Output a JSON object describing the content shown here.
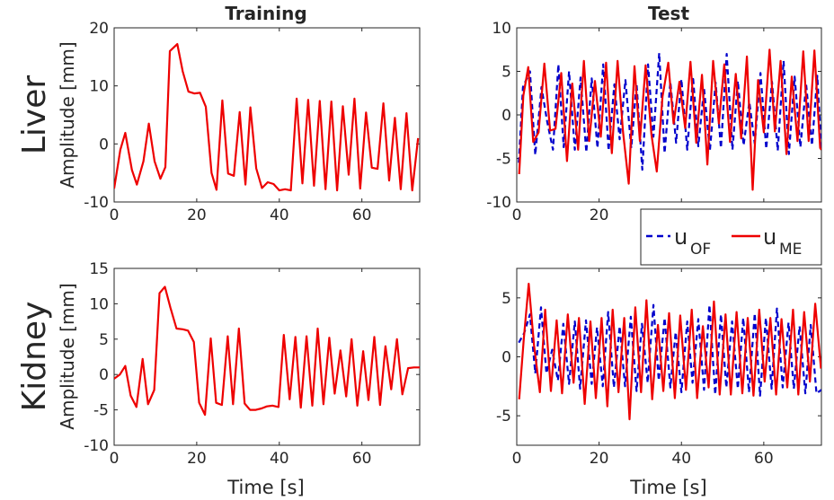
{
  "colors": {
    "ME": "#ee0000",
    "OF": "#0000cc",
    "axes": "#262626"
  },
  "legend": {
    "u": "u",
    "OF": "OF",
    "ME": "ME"
  },
  "rows": [
    "Liver",
    "Kidney"
  ],
  "chart_data": [
    {
      "type": "line",
      "title": "Training",
      "row": "Liver",
      "xlabel": "",
      "ylabel": "Amplitude [mm]",
      "xlim": [
        0,
        74
      ],
      "ylim": [
        -10,
        20
      ],
      "xticks": [
        0,
        20,
        40,
        60
      ],
      "yticks": [
        -10,
        0,
        10,
        20
      ],
      "ytick_labels": [
        "-10",
        "0",
        "10",
        "20"
      ],
      "series": [
        {
          "name": "u_ME",
          "color": "#ee0000",
          "dash": "solid",
          "x": [
            0,
            1.5,
            2.7,
            4.3,
            5.5,
            7.1,
            8.4,
            9.8,
            11.2,
            12.4,
            13.5,
            15.3,
            16.6,
            18.0,
            19.4,
            20.8,
            22.2,
            23.6,
            24.8,
            26.2,
            27.6,
            29.0,
            30.4,
            31.8,
            33.0,
            34.4,
            35.8,
            37.2,
            38.6,
            40.0,
            41.4,
            42.8,
            44.2,
            45.6,
            47.0,
            48.4,
            49.8,
            51.2,
            52.6,
            54.0,
            55.4,
            56.8,
            58.2,
            59.6,
            61.0,
            62.4,
            63.8,
            65.2,
            66.6,
            68.0,
            69.4,
            70.8,
            72.2,
            73.6
          ],
          "values": [
            -7.7,
            -1,
            1.9,
            -4.5,
            -7,
            -3,
            3.5,
            -3,
            -6,
            -4,
            16.0,
            17.2,
            12.5,
            9.0,
            8.7,
            8.8,
            6.4,
            -5.0,
            -7.9,
            7.5,
            -5.1,
            -5.5,
            5.5,
            -7.0,
            6.3,
            -4.2,
            -7.6,
            -6.6,
            -6.9,
            -8.0,
            -7.8,
            -8.0,
            7.8,
            -6.8,
            7.6,
            -7.2,
            7.4,
            -7.8,
            7.3,
            -8.0,
            6.5,
            -5.3,
            7.8,
            -7.7,
            5.4,
            -4.1,
            -4.3,
            7.0,
            -6.3,
            4.5,
            -7.8,
            5.3,
            -8.0,
            1.0
          ]
        }
      ]
    },
    {
      "type": "line",
      "title": "Test",
      "row": "Liver",
      "xlabel": "",
      "ylabel": "",
      "xlim": [
        0,
        74
      ],
      "ylim": [
        -10,
        10
      ],
      "xticks": [
        0,
        20,
        40,
        60
      ],
      "yticks": [
        -10,
        -5,
        0,
        5,
        10
      ],
      "ytick_labels": [
        "-10",
        "-5",
        "0",
        "5",
        "10"
      ],
      "series": [
        {
          "name": "u_OF",
          "color": "#0000cc",
          "dash": "dashed",
          "x": [
            0.5,
            1.5,
            3.2,
            4.5,
            6.0,
            7.4,
            8.8,
            10.1,
            11.4,
            12.7,
            14.1,
            15.5,
            16.9,
            18.2,
            19.6,
            21.0,
            22.3,
            23.7,
            25.0,
            26.4,
            27.8,
            29.1,
            30.5,
            31.9,
            33.2,
            34.6,
            35.9,
            37.3,
            38.7,
            40.0,
            41.4,
            42.8,
            44.1,
            45.5,
            46.9,
            48.3,
            49.6,
            51.0,
            52.4,
            53.7,
            55.1,
            56.5,
            57.8,
            59.2,
            60.6,
            62.0,
            63.4,
            64.8,
            66.1,
            67.5,
            68.9,
            70.3,
            71.7,
            73.0,
            74.0
          ],
          "values": [
            -5.5,
            3.2,
            5.0,
            -4.6,
            3.2,
            -0.8,
            -4.0,
            5.8,
            -3.7,
            5.0,
            -4.0,
            4.3,
            -4.3,
            4.2,
            -3.8,
            5.8,
            -4.1,
            3.5,
            -2.8,
            4.0,
            -3.8,
            3.6,
            -6.3,
            5.8,
            -2.5,
            7.1,
            -4.4,
            3.8,
            -3.2,
            4.1,
            -4.0,
            4.4,
            -3.6,
            3.0,
            -4.1,
            3.7,
            -3.8,
            7.0,
            -4.0,
            3.9,
            -3.5,
            1.5,
            -3.3,
            4.8,
            -3.9,
            3.8,
            -4.1,
            6.2,
            -4.5,
            4.4,
            -3.7,
            3.5,
            -3.5,
            4.5,
            -4.0
          ]
        },
        {
          "name": "u_ME",
          "color": "#ee0000",
          "dash": "solid",
          "x": [
            0.6,
            1.6,
            2.8,
            4.0,
            5.3,
            6.7,
            8.1,
            9.4,
            10.8,
            12.2,
            13.5,
            14.9,
            16.3,
            17.6,
            19.0,
            20.4,
            21.7,
            23.1,
            24.5,
            25.8,
            27.2,
            28.6,
            29.9,
            31.3,
            32.7,
            34.0,
            35.4,
            36.8,
            38.1,
            39.5,
            40.9,
            42.2,
            43.6,
            45.0,
            46.3,
            47.7,
            49.1,
            50.4,
            51.8,
            53.2,
            54.5,
            55.9,
            57.3,
            58.6,
            60.0,
            61.4,
            62.7,
            64.1,
            65.5,
            66.8,
            68.2,
            69.6,
            70.9,
            72.3,
            73.7,
            74.0
          ],
          "values": [
            -6.8,
            2.2,
            5.5,
            -3.1,
            -2.0,
            5.9,
            -1.8,
            -1.6,
            4.8,
            -5.3,
            3.6,
            -4.0,
            6.2,
            -3.0,
            3.9,
            -2.5,
            6.0,
            -4.4,
            6.2,
            -1.9,
            -7.9,
            5.6,
            -3.0,
            5.7,
            -2.2,
            -6.5,
            2.1,
            6.0,
            -1.0,
            3.8,
            -1.5,
            6.1,
            -3.2,
            4.6,
            -5.7,
            6.2,
            -1.0,
            5.8,
            -3.1,
            4.7,
            -2.7,
            6.7,
            -8.6,
            4.0,
            -2.0,
            7.5,
            -1.9,
            6.2,
            -4.5,
            4.4,
            -3.0,
            7.3,
            -3.0,
            7.4,
            -3.8,
            -4.0
          ]
        }
      ]
    },
    {
      "type": "line",
      "title": "",
      "row": "Kidney",
      "xlabel": "Time [s]",
      "ylabel": "Amplitude [mm]",
      "xlim": [
        0,
        74
      ],
      "ylim": [
        -10,
        15
      ],
      "xticks": [
        0,
        20,
        40,
        60
      ],
      "yticks": [
        -10,
        -5,
        0,
        5,
        10,
        15
      ],
      "ytick_labels": [
        "-10",
        "-5",
        "0",
        "5",
        "10",
        "15"
      ],
      "series": [
        {
          "name": "u_ME",
          "color": "#ee0000",
          "dash": "solid",
          "x": [
            0,
            1.4,
            2.7,
            4.0,
            5.4,
            6.9,
            8.2,
            9.7,
            11.0,
            12.3,
            13.6,
            15.1,
            16.6,
            17.9,
            19.3,
            20.6,
            22.0,
            23.4,
            24.7,
            26.1,
            27.5,
            28.8,
            30.2,
            31.6,
            32.9,
            34.3,
            35.7,
            37.0,
            38.4,
            39.8,
            41.1,
            42.5,
            43.9,
            45.2,
            46.6,
            48.0,
            49.3,
            50.7,
            52.1,
            53.4,
            54.8,
            56.2,
            57.5,
            58.9,
            60.3,
            61.6,
            63.0,
            64.4,
            65.7,
            67.1,
            68.5,
            69.8,
            71.2,
            72.6,
            74.0
          ],
          "values": [
            -0.6,
            0.0,
            1.2,
            -3.0,
            -4.6,
            2.2,
            -4.2,
            -2.2,
            11.5,
            12.4,
            9.5,
            6.5,
            6.4,
            6.2,
            4.6,
            -4.0,
            -5.7,
            5.1,
            -4.0,
            -4.3,
            5.4,
            -4.2,
            6.5,
            -4.1,
            -5.0,
            -5.0,
            -4.8,
            -4.5,
            -4.4,
            -4.6,
            5.6,
            -3.5,
            5.3,
            -4.7,
            5.4,
            -4.4,
            6.5,
            -4.2,
            5.2,
            -2.7,
            3.4,
            -3.1,
            5.0,
            -4.4,
            3.3,
            -3.6,
            5.3,
            -4.3,
            4.0,
            -2.1,
            5.0,
            -2.8,
            0.9,
            1.0,
            1.0
          ]
        }
      ]
    },
    {
      "type": "line",
      "title": "",
      "row": "Kidney",
      "xlabel": "Time [s]",
      "ylabel": "",
      "xlim": [
        0,
        74
      ],
      "ylim": [
        -7.5,
        7.5
      ],
      "xticks": [
        0,
        20,
        40,
        60
      ],
      "yticks": [
        -5,
        0,
        5
      ],
      "ytick_labels": [
        "-5",
        "0",
        "5"
      ],
      "series": [
        {
          "name": "u_OF",
          "color": "#0000cc",
          "dash": "dashed",
          "x": [
            0.5,
            1.8,
            3.2,
            4.5,
            5.9,
            7.2,
            8.6,
            10.0,
            11.3,
            12.7,
            14.1,
            15.4,
            16.8,
            18.2,
            19.5,
            20.9,
            22.2,
            23.6,
            25.0,
            26.3,
            27.7,
            29.1,
            30.4,
            31.8,
            33.2,
            34.5,
            35.9,
            37.3,
            38.6,
            40.0,
            41.4,
            42.7,
            44.1,
            45.5,
            46.8,
            48.2,
            49.6,
            50.9,
            52.3,
            53.7,
            55.0,
            56.4,
            57.8,
            59.1,
            60.5,
            61.9,
            63.2,
            64.6,
            66.0,
            67.3,
            68.7,
            70.1,
            71.4,
            72.8,
            74.0
          ],
          "values": [
            1.2,
            2.0,
            3.6,
            -1.4,
            4.2,
            -1.4,
            0.6,
            -2.0,
            2.8,
            -2.3,
            3.0,
            -2.7,
            3.1,
            -2.3,
            2.5,
            -2.5,
            3.8,
            -2.6,
            2.6,
            -2.5,
            3.4,
            -2.9,
            2.8,
            -2.2,
            4.4,
            -2.0,
            3.3,
            -2.6,
            2.1,
            -3.0,
            3.0,
            -2.2,
            3.2,
            -2.8,
            4.4,
            -3.2,
            3.6,
            -2.6,
            3.0,
            -2.7,
            3.3,
            -3.0,
            3.7,
            -3.3,
            3.3,
            -2.7,
            4.1,
            -2.6,
            2.9,
            -2.7,
            2.6,
            -3.1,
            2.7,
            -3.1,
            -2.8
          ]
        },
        {
          "name": "u_ME",
          "color": "#ee0000",
          "dash": "solid",
          "x": [
            0.6,
            1.7,
            2.9,
            4.2,
            5.6,
            6.9,
            8.3,
            9.7,
            11.0,
            12.4,
            13.8,
            15.1,
            16.5,
            17.9,
            19.2,
            20.6,
            22.0,
            23.3,
            24.7,
            26.1,
            27.4,
            28.8,
            30.2,
            31.5,
            32.9,
            34.3,
            35.6,
            37.0,
            38.4,
            39.7,
            41.1,
            42.5,
            43.8,
            45.2,
            46.6,
            47.9,
            49.3,
            50.7,
            52.0,
            53.4,
            54.8,
            56.1,
            57.5,
            58.9,
            60.2,
            61.6,
            63.0,
            64.3,
            65.7,
            67.1,
            68.4,
            69.8,
            71.2,
            72.5,
            73.9
          ],
          "values": [
            -3.6,
            1.5,
            6.2,
            1.0,
            -3.0,
            4.0,
            -2.9,
            3.1,
            -3.1,
            3.6,
            -2.2,
            3.3,
            -4.0,
            3.0,
            -3.5,
            3.3,
            -4.2,
            4.0,
            -3.0,
            3.3,
            -5.3,
            4.2,
            -3.0,
            4.8,
            -3.6,
            2.7,
            -2.9,
            3.7,
            -3.5,
            3.5,
            -2.8,
            4.0,
            -3.5,
            2.6,
            -2.6,
            4.7,
            -3.2,
            3.6,
            -3.2,
            3.8,
            -3.1,
            3.3,
            -3.3,
            4.0,
            -2.1,
            3.3,
            -3.2,
            3.2,
            -2.6,
            4.0,
            -3.2,
            3.8,
            -2.1,
            4.5,
            -1.0
          ]
        }
      ]
    }
  ]
}
